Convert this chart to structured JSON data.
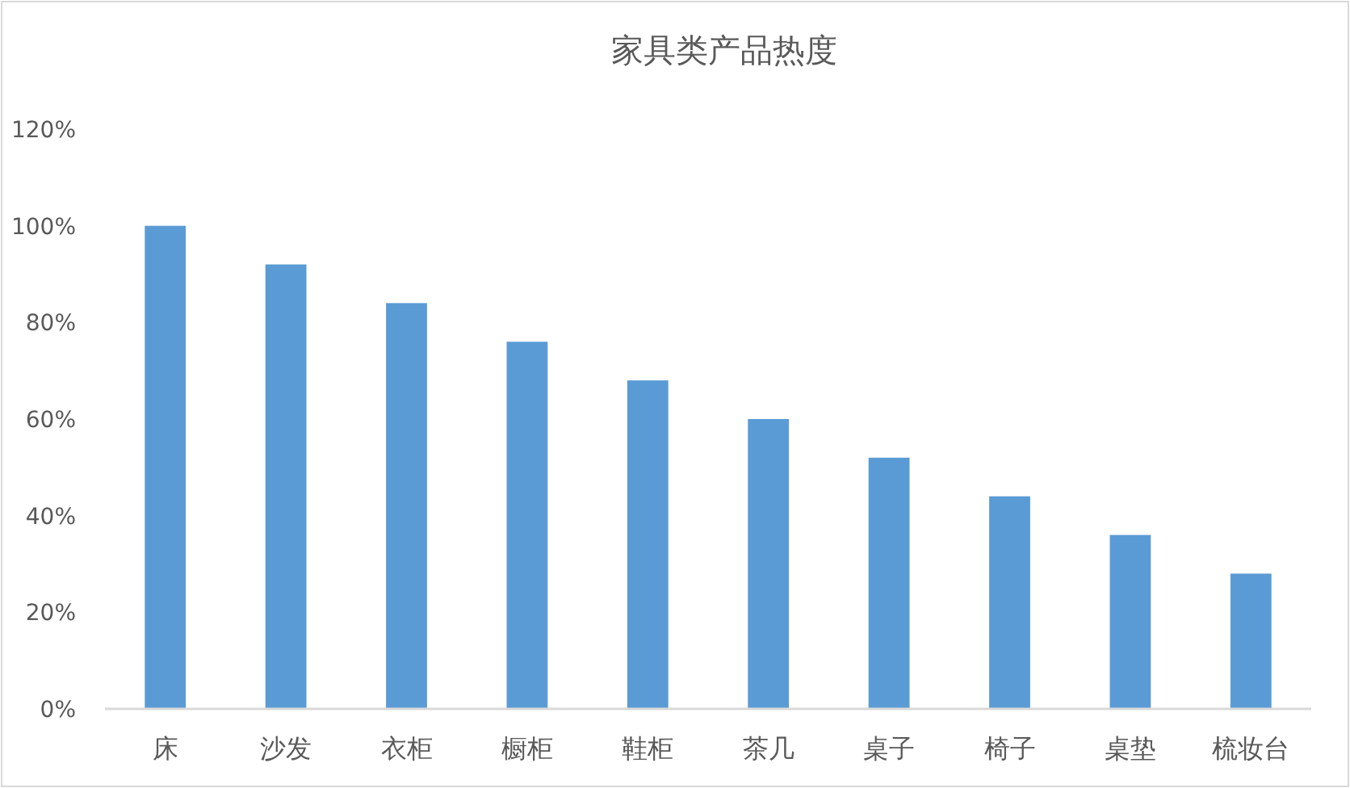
{
  "chart_data": {
    "type": "bar",
    "title": "家具类产品热度",
    "categories": [
      "床",
      "沙发",
      "衣柜",
      "橱柜",
      "鞋柜",
      "茶几",
      "桌子",
      "椅子",
      "桌垫",
      "梳妆台"
    ],
    "values": [
      100,
      92,
      84,
      76,
      68,
      60,
      52,
      44,
      36,
      28
    ],
    "color": "#5b9bd5",
    "ylim": [
      0,
      120
    ],
    "yticks": [
      {
        "value": 0,
        "label": "0%"
      },
      {
        "value": 20,
        "label": "20%"
      },
      {
        "value": 40,
        "label": "40%"
      },
      {
        "value": 60,
        "label": "60%"
      },
      {
        "value": 80,
        "label": "80%"
      },
      {
        "value": 100,
        "label": "100%"
      },
      {
        "value": 120,
        "label": "120%"
      }
    ],
    "grid": false
  }
}
